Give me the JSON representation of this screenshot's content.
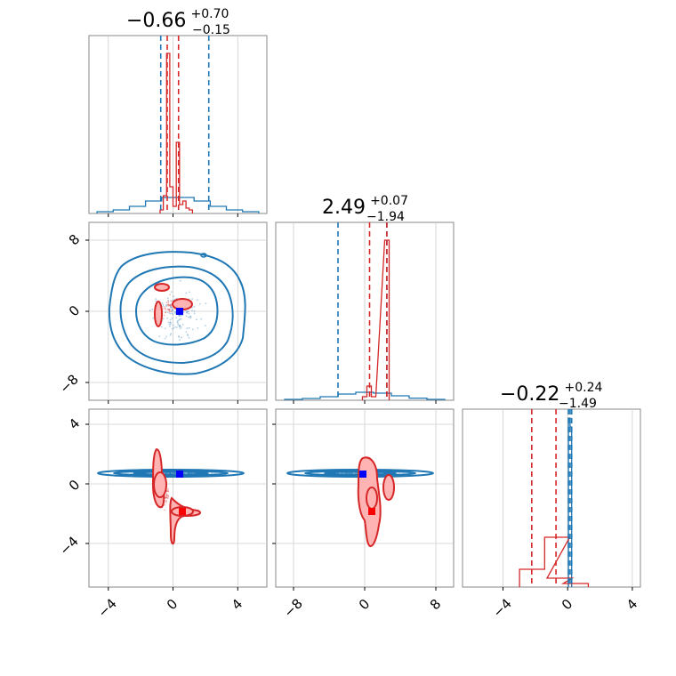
{
  "colors": {
    "series_a": "#1f77b4",
    "series_b": "#d62728",
    "truth": "#0000ff",
    "grid": "#cccccc",
    "frame": "#888888"
  },
  "chart_data": [
    {
      "type": "histogram",
      "panel": "diag-1",
      "title_main": "−0.66",
      "title_sup": "+0.70",
      "title_sub": "−0.15",
      "xlim": [
        -5.5,
        5.5
      ],
      "grid": true,
      "series": [
        {
          "color": "blue",
          "quantiles": [
            -1.06,
            1.91
          ],
          "bins_x": [
            -4.5,
            -3.5,
            -2.5,
            -1.5,
            -0.5,
            0.5,
            1.5,
            2.5,
            3.5,
            4.5
          ],
          "counts": [
            0.01,
            0.02,
            0.04,
            0.07,
            0.09,
            0.09,
            0.07,
            0.04,
            0.02,
            0.01
          ]
        },
        {
          "color": "red",
          "quantiles": [
            -0.66,
            0.04
          ],
          "bins_x": [
            -1.0,
            -0.8,
            -0.6,
            -0.4,
            -0.2,
            0.0,
            0.2,
            0.4,
            0.6,
            0.8
          ],
          "counts": [
            0.02,
            0.1,
            0.9,
            0.15,
            0.04,
            0.4,
            0.05,
            0.07,
            0.03,
            0.02
          ]
        }
      ]
    },
    {
      "type": "histogram",
      "panel": "diag-2",
      "title_main": "2.49",
      "title_sup": "+0.07",
      "title_sub": "−1.94",
      "xlim": [
        -10,
        10
      ],
      "grid": true,
      "series": [
        {
          "color": "blue",
          "quantiles": [
            -3.0,
            2.49
          ],
          "bins_x": [
            -8,
            -6,
            -4,
            -2,
            0,
            2,
            4,
            6,
            8
          ],
          "counts": [
            0.005,
            0.01,
            0.02,
            0.035,
            0.045,
            0.04,
            0.025,
            0.012,
            0.005
          ]
        },
        {
          "color": "red",
          "quantiles": [
            0.55,
            2.49
          ],
          "bins_x": [
            0.0,
            0.5,
            1.0,
            2.5
          ],
          "counts": [
            0.02,
            0.08,
            0.02,
            0.9
          ]
        }
      ]
    },
    {
      "type": "histogram",
      "panel": "diag-3",
      "title_main": "−0.22",
      "title_sup": "+0.24",
      "title_sub": "−1.49",
      "xlim": [
        -6,
        5
      ],
      "grid": true,
      "series": [
        {
          "color": "blue",
          "quantiles": [
            0.55,
            0.65,
            0.75
          ],
          "bins_x": [
            0.6,
            0.7
          ],
          "counts": [
            0.95,
            0.9
          ]
        },
        {
          "color": "red",
          "quantiles": [
            -1.72,
            -0.22
          ],
          "bins_x": [
            -1.7,
            -0.15,
            0.0,
            1.0
          ],
          "counts": [
            0.1,
            0.28,
            0.05,
            0.02
          ]
        }
      ]
    },
    {
      "type": "contour",
      "panel": "x1-vs-x2",
      "xlim": [
        -5.5,
        5.5
      ],
      "ylim": [
        -10,
        10
      ],
      "yticks": [
        "8",
        "0",
        "−8"
      ],
      "truth": [
        0.5,
        -0.5
      ],
      "grid": true
    },
    {
      "type": "contour",
      "panel": "x1-vs-x3",
      "xlim": [
        -5.5,
        5.5
      ],
      "ylim": [
        -7,
        5
      ],
      "xticks": [
        "−4",
        "0",
        "4"
      ],
      "yticks": [
        "4",
        "0",
        "−4"
      ],
      "truth": [
        0.5,
        0.7
      ],
      "grid": true
    },
    {
      "type": "contour",
      "panel": "x2-vs-x3",
      "xlim": [
        -10,
        10
      ],
      "ylim": [
        -7,
        5
      ],
      "xticks": [
        "−8",
        "0",
        "8"
      ],
      "truth": [
        -0.2,
        0.7
      ],
      "grid": true
    },
    {
      "type": "axis",
      "panel": "x3-axis",
      "xlim": [
        -6,
        5
      ],
      "xticks": [
        "−4",
        "0",
        "4"
      ]
    }
  ]
}
